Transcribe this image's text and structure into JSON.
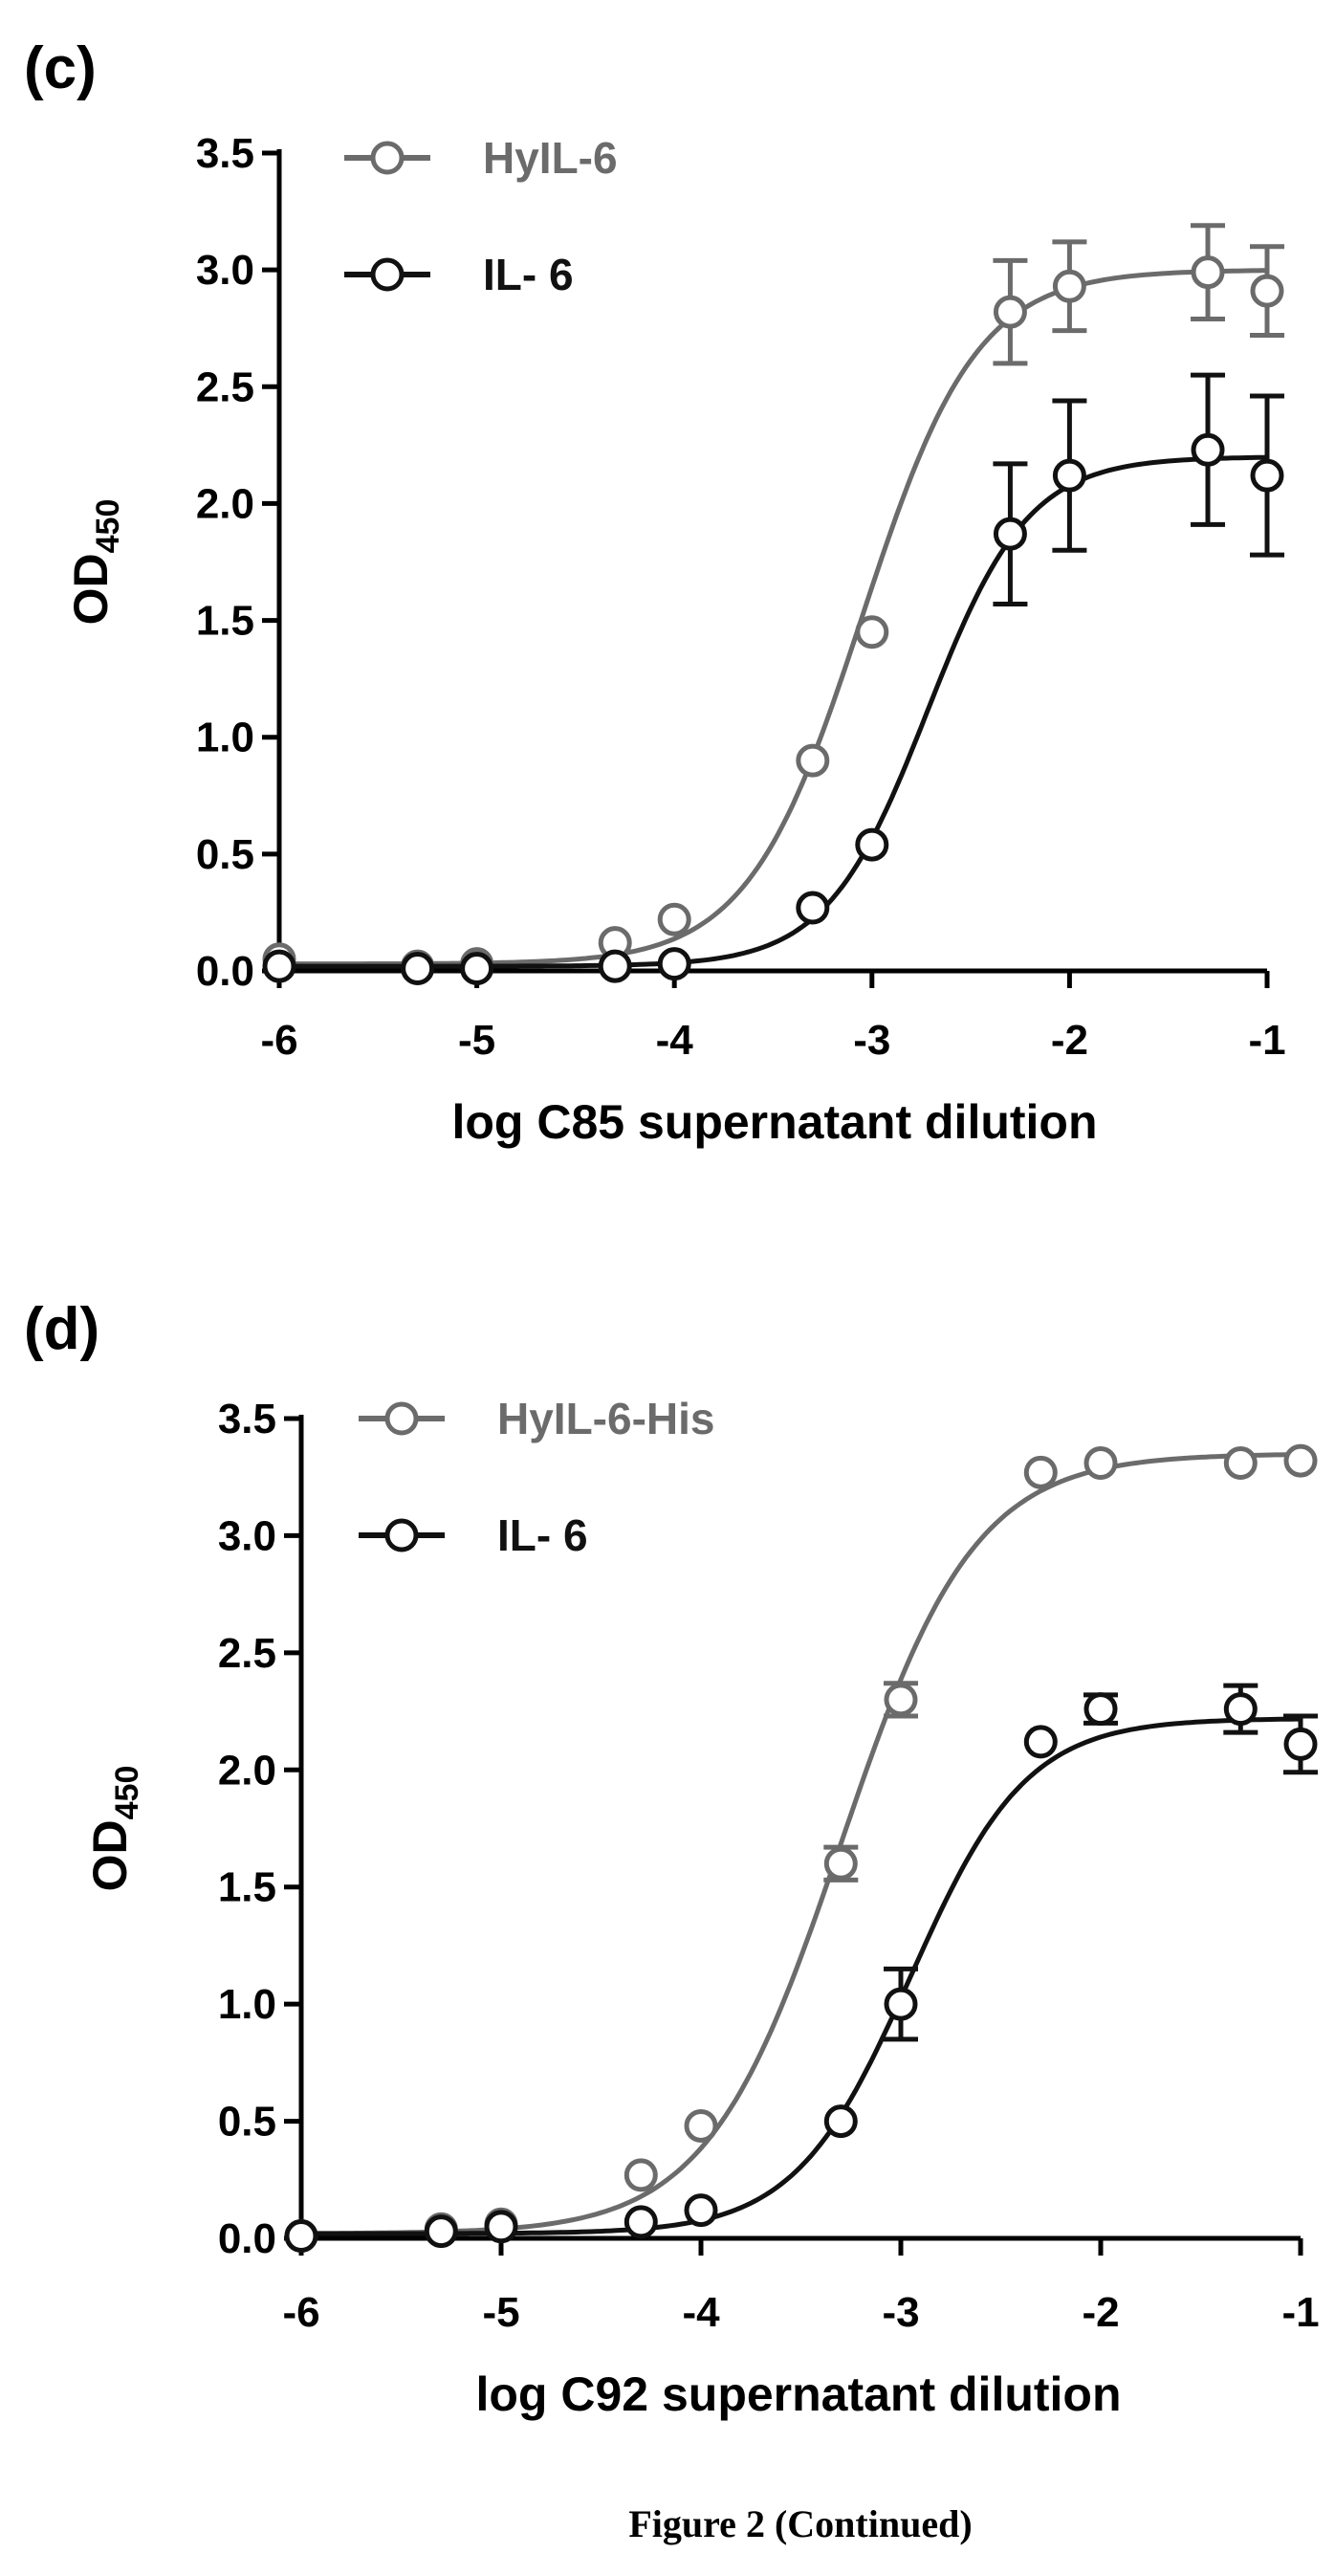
{
  "figure_caption": "Figure 2 (Continued)",
  "colors": {
    "series_light": "#6b6b6b",
    "series_dark": "#111111"
  },
  "chart_data": [
    {
      "panel": "(c)",
      "type": "scatter",
      "xlabel": "log C85 supernatant dilution",
      "ylabel_main": "OD",
      "ylabel_sub": "450",
      "xlim": [
        -6,
        -1
      ],
      "ylim": [
        0,
        3.5
      ],
      "xticks": [
        "-6",
        "-5",
        "-4",
        "-3",
        "-2",
        "-1"
      ],
      "yticks": [
        "0.0",
        "0.5",
        "1.0",
        "1.5",
        "2.0",
        "2.5",
        "3.0",
        "3.5"
      ],
      "legend_position": "top-left",
      "series": [
        {
          "name": "HyIL-6",
          "color": "#6b6b6b",
          "x": [
            -6,
            -5.3,
            -5,
            -4.3,
            -4,
            -3.3,
            -3,
            -2.3,
            -2,
            -1.3,
            -1
          ],
          "y": [
            0.05,
            0.02,
            0.03,
            0.12,
            0.22,
            0.9,
            1.45,
            2.82,
            2.93,
            2.99,
            2.91
          ],
          "err": [
            0,
            0,
            0,
            0,
            0,
            0,
            0,
            0.22,
            0.19,
            0.2,
            0.19
          ],
          "fit": {
            "bottom": 0.03,
            "top": 3.0,
            "logec50": -3.05,
            "hill": 1.5
          }
        },
        {
          "name": "IL- 6",
          "color": "#111111",
          "x": [
            -6,
            -5.3,
            -5,
            -4.3,
            -4,
            -3.3,
            -3,
            -2.3,
            -2,
            -1.3,
            -1
          ],
          "y": [
            0.02,
            0.01,
            0.01,
            0.02,
            0.03,
            0.27,
            0.54,
            1.87,
            2.12,
            2.23,
            2.12
          ],
          "err": [
            0,
            0,
            0,
            0,
            0,
            0,
            0,
            0.3,
            0.32,
            0.32,
            0.34
          ],
          "fit": {
            "bottom": 0.02,
            "top": 2.2,
            "logec50": -2.72,
            "hill": 1.7
          }
        }
      ]
    },
    {
      "panel": "(d)",
      "type": "scatter",
      "xlabel": "log C92 supernatant dilution",
      "ylabel_main": "OD",
      "ylabel_sub": "450",
      "xlim": [
        -6,
        -1
      ],
      "ylim": [
        0,
        3.5
      ],
      "xticks": [
        "-6",
        "-5",
        "-4",
        "-3",
        "-2",
        "-1"
      ],
      "yticks": [
        "0.0",
        "0.5",
        "1.0",
        "1.5",
        "2.0",
        "2.5",
        "3.0",
        "3.5"
      ],
      "legend_position": "top-left",
      "series": [
        {
          "name": "HyIL-6-His",
          "color": "#6b6b6b",
          "x": [
            -6,
            -5.3,
            -5,
            -4.3,
            -4,
            -3.3,
            -3,
            -2.3,
            -2,
            -1.3,
            -1
          ],
          "y": [
            0.01,
            0.04,
            0.06,
            0.27,
            0.48,
            1.6,
            2.3,
            3.27,
            3.31,
            3.31,
            3.32
          ],
          "err": [
            0,
            0,
            0,
            0,
            0,
            0.07,
            0.07,
            0,
            0,
            0,
            0
          ],
          "fit": {
            "bottom": 0.02,
            "top": 3.35,
            "logec50": -3.3,
            "hill": 1.3
          }
        },
        {
          "name": "IL- 6",
          "color": "#111111",
          "x": [
            -6,
            -5.3,
            -5,
            -4.3,
            -4,
            -3.3,
            -3,
            -2.3,
            -2,
            -1.3,
            -1
          ],
          "y": [
            0.01,
            0.03,
            0.05,
            0.07,
            0.12,
            0.5,
            1.0,
            2.12,
            2.26,
            2.26,
            2.11
          ],
          "err": [
            0,
            0,
            0,
            0,
            0,
            0,
            0.15,
            0,
            0.06,
            0.1,
            0.12
          ],
          "fit": {
            "bottom": 0.02,
            "top": 2.22,
            "logec50": -2.95,
            "hill": 1.5
          }
        }
      ]
    }
  ]
}
